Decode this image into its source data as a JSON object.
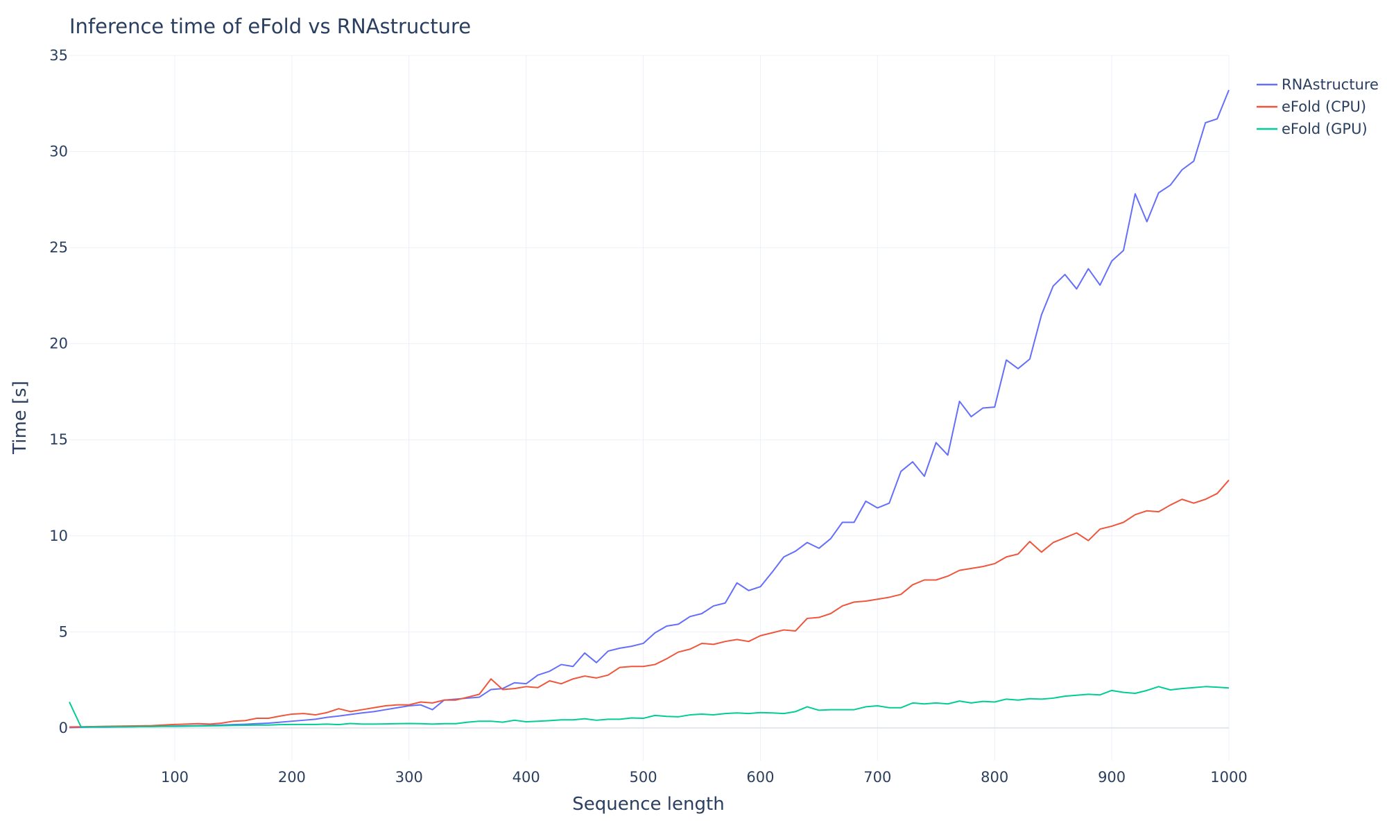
{
  "chart_data": {
    "type": "line",
    "title": "Inference time of eFold vs RNAstructure",
    "xlabel": "Sequence length",
    "ylabel": "Time [s]",
    "xlim": [
      10,
      1000
    ],
    "ylim": [
      -1.7,
      35
    ],
    "xticks": [
      100,
      200,
      300,
      400,
      500,
      600,
      700,
      800,
      900,
      1000
    ],
    "yticks": [
      0,
      5,
      10,
      15,
      20,
      25,
      30,
      35
    ],
    "grid": true,
    "legend_position": "top-right",
    "x": [
      10,
      20,
      30,
      40,
      50,
      60,
      70,
      80,
      90,
      100,
      110,
      120,
      130,
      140,
      150,
      160,
      170,
      180,
      190,
      200,
      210,
      220,
      230,
      240,
      250,
      260,
      270,
      280,
      290,
      300,
      310,
      320,
      330,
      340,
      350,
      360,
      370,
      380,
      390,
      400,
      410,
      420,
      430,
      440,
      450,
      460,
      470,
      480,
      490,
      500,
      510,
      520,
      530,
      540,
      550,
      560,
      570,
      580,
      590,
      600,
      610,
      620,
      630,
      640,
      650,
      660,
      670,
      680,
      690,
      700,
      710,
      720,
      730,
      740,
      750,
      760,
      770,
      780,
      790,
      800,
      810,
      820,
      830,
      840,
      850,
      860,
      870,
      880,
      890,
      900,
      910,
      920,
      930,
      940,
      950,
      960,
      970,
      980,
      990,
      1000
    ],
    "series": [
      {
        "name": "RNAstructure",
        "color": "#636efa",
        "values": [
          0.02,
          0.03,
          0.04,
          0.04,
          0.05,
          0.06,
          0.07,
          0.08,
          0.09,
          0.1,
          0.11,
          0.12,
          0.13,
          0.15,
          0.17,
          0.19,
          0.22,
          0.25,
          0.3,
          0.35,
          0.4,
          0.45,
          0.55,
          0.62,
          0.7,
          0.78,
          0.85,
          0.95,
          1.05,
          1.15,
          1.2,
          0.95,
          1.45,
          1.5,
          1.55,
          1.6,
          2.0,
          2.05,
          2.35,
          2.3,
          2.75,
          2.95,
          3.3,
          3.2,
          3.9,
          3.4,
          4.0,
          4.15,
          4.25,
          4.4,
          4.95,
          5.3,
          5.4,
          5.8,
          5.95,
          6.35,
          6.5,
          7.55,
          7.15,
          7.35,
          8.1,
          8.9,
          9.2,
          9.65,
          9.35,
          9.85,
          10.7,
          10.7,
          11.8,
          11.45,
          11.7,
          13.35,
          13.85,
          13.1,
          14.85,
          14.2,
          17.0,
          16.2,
          16.65,
          16.7,
          19.15,
          18.7,
          19.2,
          21.5,
          23.0,
          23.6,
          22.85,
          23.9,
          23.05,
          24.3,
          24.85,
          27.8,
          26.35,
          27.85,
          28.25,
          29.05,
          29.5,
          31.5,
          31.7,
          33.2
        ]
      },
      {
        "name": "eFold (CPU)",
        "color": "#ef553b",
        "values": [
          0.05,
          0.06,
          0.07,
          0.08,
          0.09,
          0.1,
          0.11,
          0.12,
          0.15,
          0.18,
          0.2,
          0.22,
          0.2,
          0.25,
          0.35,
          0.38,
          0.5,
          0.5,
          0.62,
          0.72,
          0.75,
          0.68,
          0.8,
          1.0,
          0.85,
          0.95,
          1.05,
          1.15,
          1.2,
          1.2,
          1.35,
          1.3,
          1.45,
          1.45,
          1.6,
          1.75,
          2.55,
          2.0,
          2.05,
          2.15,
          2.1,
          2.45,
          2.3,
          2.55,
          2.7,
          2.6,
          2.75,
          3.15,
          3.2,
          3.2,
          3.3,
          3.6,
          3.95,
          4.1,
          4.4,
          4.35,
          4.5,
          4.6,
          4.5,
          4.8,
          4.95,
          5.1,
          5.05,
          5.7,
          5.75,
          5.95,
          6.35,
          6.55,
          6.6,
          6.7,
          6.8,
          6.95,
          7.45,
          7.7,
          7.7,
          7.9,
          8.2,
          8.3,
          8.4,
          8.55,
          8.9,
          9.05,
          9.7,
          9.15,
          9.65,
          9.9,
          10.15,
          9.75,
          10.35,
          10.5,
          10.7,
          11.1,
          11.3,
          11.25,
          11.6,
          11.9,
          11.7,
          11.9,
          12.2,
          12.9
        ]
      },
      {
        "name": "eFold (GPU)",
        "color": "#00cc96",
        "values": [
          1.35,
          0.05,
          0.05,
          0.06,
          0.06,
          0.06,
          0.07,
          0.07,
          0.08,
          0.08,
          0.09,
          0.1,
          0.11,
          0.12,
          0.13,
          0.14,
          0.15,
          0.15,
          0.17,
          0.18,
          0.18,
          0.18,
          0.2,
          0.17,
          0.23,
          0.2,
          0.2,
          0.21,
          0.22,
          0.23,
          0.22,
          0.2,
          0.22,
          0.22,
          0.3,
          0.35,
          0.35,
          0.3,
          0.4,
          0.32,
          0.35,
          0.38,
          0.42,
          0.42,
          0.48,
          0.4,
          0.45,
          0.45,
          0.52,
          0.5,
          0.65,
          0.6,
          0.58,
          0.68,
          0.72,
          0.68,
          0.75,
          0.78,
          0.75,
          0.8,
          0.78,
          0.75,
          0.85,
          1.1,
          0.92,
          0.95,
          0.95,
          0.95,
          1.1,
          1.15,
          1.05,
          1.05,
          1.3,
          1.25,
          1.3,
          1.25,
          1.4,
          1.3,
          1.38,
          1.35,
          1.5,
          1.45,
          1.52,
          1.5,
          1.55,
          1.65,
          1.7,
          1.75,
          1.72,
          1.95,
          1.85,
          1.8,
          1.95,
          2.15,
          1.98,
          2.05,
          2.1,
          2.15,
          2.12,
          2.08
        ]
      }
    ]
  }
}
